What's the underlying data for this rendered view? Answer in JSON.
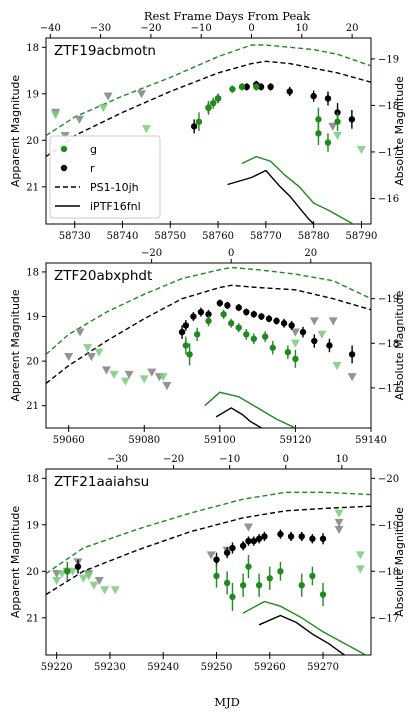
{
  "figure": {
    "top_xlabel": "Rest Frame Days From Peak",
    "bottom_xlabel": "MJD",
    "ylabel_left": "Apparent Magnitude",
    "ylabel_right": "Absolute Magnitude"
  },
  "legend": {
    "g": "g",
    "r": "r",
    "ps1": "PS1-10jh",
    "iptf": "iPTF16fnl"
  },
  "colors": {
    "g": "#1f8a1f",
    "r": "#000000",
    "g_limit": "#7cc97c",
    "r_limit": "#808080"
  },
  "chart_data": [
    {
      "type": "scatter",
      "title": "ZTF19acbmotn",
      "xlabel": "",
      "ylabel": "Apparent Magnitude",
      "x_mjd_range": [
        58724,
        58792
      ],
      "ylim": [
        21.8,
        17.8
      ],
      "x_ticks": [
        58730,
        58740,
        58750,
        58760,
        58770,
        58780,
        58790
      ],
      "y_ticks": [
        18,
        19,
        20,
        21
      ],
      "top_ticks": [
        -40,
        -30,
        -20,
        -10,
        0,
        10,
        20
      ],
      "top_zero_mjd": 58767,
      "top_scale": 0.95,
      "right_ticks": [
        -19,
        -18,
        -17,
        -16
      ],
      "abs_offset": 37.25,
      "g": [
        [
          58756,
          19.6
        ],
        [
          58758,
          19.3
        ],
        [
          58759,
          19.2
        ],
        [
          58760,
          19.1
        ],
        [
          58763,
          18.9
        ],
        [
          58765,
          18.85
        ],
        [
          58768,
          18.85
        ],
        [
          58781,
          19.55
        ],
        [
          58781,
          19.85
        ],
        [
          58783,
          20.05
        ],
        [
          58785,
          19.6
        ]
      ],
      "g_err": [
        0.2,
        0.15,
        0.12,
        0.1,
        0.08,
        0.08,
        0.08,
        0.25,
        0.25,
        0.2,
        0.2
      ],
      "r": [
        [
          58755,
          19.7
        ],
        [
          58758,
          19.3
        ],
        [
          58760,
          19.1
        ],
        [
          58766,
          18.85
        ],
        [
          58768,
          18.8
        ],
        [
          58769,
          18.85
        ],
        [
          58771,
          18.85
        ],
        [
          58775,
          18.95
        ],
        [
          58780,
          19.05
        ],
        [
          58783,
          19.1
        ],
        [
          58785,
          19.4
        ],
        [
          58788,
          19.55
        ]
      ],
      "r_err": [
        0.15,
        0.12,
        0.1,
        0.08,
        0.08,
        0.08,
        0.08,
        0.1,
        0.12,
        0.15,
        0.2,
        0.2
      ],
      "g_lim": [
        [
          58726,
          19.45
        ],
        [
          58736,
          19.3
        ],
        [
          58745,
          19.75
        ],
        [
          58785,
          19.9
        ],
        [
          58790,
          20.2
        ]
      ],
      "r_lim": [
        [
          58726,
          19.4
        ],
        [
          58728,
          19.9
        ],
        [
          58731,
          19.55
        ],
        [
          58737,
          19.05
        ],
        [
          58744,
          19.0
        ],
        [
          58784,
          19.7
        ]
      ],
      "ps1_g": [
        [
          58724,
          19.9
        ],
        [
          58730,
          19.5
        ],
        [
          58740,
          19.05
        ],
        [
          58750,
          18.65
        ],
        [
          58760,
          18.2
        ],
        [
          58767,
          17.95
        ],
        [
          58770,
          17.95
        ],
        [
          58775,
          18.0
        ],
        [
          58780,
          18.05
        ],
        [
          58785,
          18.15
        ],
        [
          58792,
          18.4
        ]
      ],
      "ps1_r": [
        [
          58724,
          20.35
        ],
        [
          58730,
          19.9
        ],
        [
          58740,
          19.4
        ],
        [
          58750,
          18.95
        ],
        [
          58760,
          18.55
        ],
        [
          58767,
          18.35
        ],
        [
          58770,
          18.3
        ],
        [
          58775,
          18.35
        ],
        [
          58780,
          18.45
        ],
        [
          58785,
          18.55
        ],
        [
          58792,
          18.75
        ]
      ],
      "iptf_g": [
        [
          58765,
          20.5
        ],
        [
          58768,
          20.35
        ],
        [
          58771,
          20.45
        ],
        [
          58774,
          20.75
        ],
        [
          58777,
          21.0
        ],
        [
          58780,
          21.35
        ],
        [
          58783,
          21.5
        ],
        [
          58790,
          21.9
        ]
      ],
      "iptf_r": [
        [
          58762,
          20.95
        ],
        [
          58767,
          20.8
        ],
        [
          58770,
          20.65
        ],
        [
          58773,
          21.0
        ],
        [
          58775,
          21.2
        ],
        [
          58777,
          21.45
        ],
        [
          58779,
          21.7
        ],
        [
          58781,
          21.9
        ]
      ]
    },
    {
      "type": "scatter",
      "title": "ZTF20abxphdt",
      "xlabel": "",
      "ylabel": "Apparent Magnitude",
      "x_mjd_range": [
        59054,
        59140
      ],
      "ylim": [
        21.5,
        17.8
      ],
      "x_ticks": [
        59060,
        59080,
        59100,
        59120,
        59140
      ],
      "y_ticks": [
        18,
        19,
        20,
        21
      ],
      "top_ticks": [
        -20,
        0,
        20
      ],
      "top_zero_mjd": 59103,
      "top_scale": 0.95,
      "right_ticks": [
        -19,
        -18,
        -17
      ],
      "abs_offset": 37.6,
      "g": [
        [
          59091,
          19.65
        ],
        [
          59092,
          19.85
        ],
        [
          59094,
          19.4
        ],
        [
          59097,
          19.1
        ],
        [
          59101,
          18.95
        ],
        [
          59103,
          19.15
        ],
        [
          59105,
          19.25
        ],
        [
          59107,
          19.4
        ],
        [
          59109,
          19.5
        ],
        [
          59112,
          19.45
        ],
        [
          59114,
          19.7
        ],
        [
          59118,
          19.8
        ],
        [
          59120,
          19.95
        ]
      ],
      "g_err": [
        0.2,
        0.25,
        0.15,
        0.12,
        0.1,
        0.1,
        0.1,
        0.12,
        0.12,
        0.12,
        0.15,
        0.15,
        0.2
      ],
      "r": [
        [
          59090,
          19.35
        ],
        [
          59091,
          19.2
        ],
        [
          59093,
          19.0
        ],
        [
          59095,
          18.9
        ],
        [
          59097,
          18.95
        ],
        [
          59100,
          18.7
        ],
        [
          59102,
          18.75
        ],
        [
          59105,
          18.8
        ],
        [
          59107,
          18.9
        ],
        [
          59109,
          18.95
        ],
        [
          59111,
          19.0
        ],
        [
          59113,
          19.05
        ],
        [
          59115,
          19.1
        ],
        [
          59117,
          19.15
        ],
        [
          59119,
          19.2
        ],
        [
          59122,
          19.35
        ],
        [
          59125,
          19.55
        ],
        [
          59129,
          19.65
        ],
        [
          59135,
          19.85
        ]
      ],
      "r_err": [
        0.15,
        0.12,
        0.1,
        0.1,
        0.1,
        0.08,
        0.08,
        0.08,
        0.08,
        0.08,
        0.08,
        0.08,
        0.08,
        0.1,
        0.1,
        0.12,
        0.15,
        0.15,
        0.2
      ],
      "g_lim": [
        [
          59065,
          19.7
        ],
        [
          59068,
          19.8
        ],
        [
          59072,
          20.3
        ],
        [
          59075,
          20.45
        ],
        [
          59080,
          20.4
        ],
        [
          59085,
          20.35
        ],
        [
          59120,
          19.6
        ],
        [
          59127,
          19.4
        ],
        [
          59131,
          20.1
        ]
      ],
      "r_lim": [
        [
          59060,
          19.9
        ],
        [
          59063,
          19.35
        ],
        [
          59066,
          19.9
        ],
        [
          59070,
          20.2
        ],
        [
          59076,
          20.3
        ],
        [
          59082,
          20.25
        ],
        [
          59084,
          20.35
        ],
        [
          59086,
          20.55
        ],
        [
          59120,
          19.35
        ],
        [
          59125,
          19.1
        ],
        [
          59130,
          19.1
        ],
        [
          59135,
          20.35
        ]
      ],
      "ps1_g": [
        [
          59054,
          19.85
        ],
        [
          59060,
          19.4
        ],
        [
          59070,
          18.9
        ],
        [
          59080,
          18.5
        ],
        [
          59090,
          18.15
        ],
        [
          59100,
          17.95
        ],
        [
          59103,
          17.9
        ],
        [
          59110,
          17.95
        ],
        [
          59120,
          18.05
        ],
        [
          59130,
          18.2
        ],
        [
          59140,
          18.6
        ]
      ],
      "ps1_r": [
        [
          59054,
          20.5
        ],
        [
          59060,
          20.1
        ],
        [
          59070,
          19.55
        ],
        [
          59080,
          19.05
        ],
        [
          59090,
          18.6
        ],
        [
          59100,
          18.35
        ],
        [
          59103,
          18.3
        ],
        [
          59110,
          18.35
        ],
        [
          59120,
          18.4
        ],
        [
          59130,
          18.6
        ],
        [
          59140,
          18.85
        ]
      ],
      "iptf_g": [
        [
          59096,
          21.0
        ],
        [
          59100,
          20.7
        ],
        [
          59105,
          20.8
        ],
        [
          59110,
          21.05
        ],
        [
          59115,
          21.3
        ],
        [
          59120,
          21.5
        ]
      ],
      "iptf_r": [
        [
          59099,
          21.25
        ],
        [
          59103,
          21.05
        ],
        [
          59106,
          21.2
        ],
        [
          59108,
          21.35
        ],
        [
          59111,
          21.5
        ]
      ]
    },
    {
      "type": "scatter",
      "title": "ZTF21aaiahsu",
      "xlabel": "MJD",
      "ylabel": "Apparent Magnitude",
      "x_mjd_range": [
        59218,
        59279
      ],
      "ylim": [
        21.8,
        17.8
      ],
      "x_ticks": [
        59220,
        59230,
        59240,
        59250,
        59260,
        59270
      ],
      "y_ticks": [
        18,
        19,
        20,
        21
      ],
      "top_ticks": [
        -30,
        -20,
        -10,
        0,
        10
      ],
      "top_zero_mjd": 59263,
      "top_scale": 0.95,
      "right_ticks": [
        -20,
        -19,
        -18,
        -17
      ],
      "abs_offset": 38.0,
      "g": [
        [
          59222,
          20.0
        ],
        [
          59250,
          20.1
        ],
        [
          59252,
          20.25
        ],
        [
          59253,
          20.55
        ],
        [
          59255,
          20.3
        ],
        [
          59256,
          19.9
        ],
        [
          59258,
          20.3
        ],
        [
          59260,
          20.15
        ],
        [
          59262,
          20.0
        ],
        [
          59266,
          20.3
        ],
        [
          59268,
          20.1
        ],
        [
          59270,
          20.5
        ]
      ],
      "g_err": [
        0.2,
        0.25,
        0.25,
        0.3,
        0.25,
        0.25,
        0.25,
        0.25,
        0.2,
        0.25,
        0.2,
        0.25
      ],
      "r": [
        [
          59224,
          19.9
        ],
        [
          59250,
          19.75
        ],
        [
          59252,
          19.6
        ],
        [
          59253,
          19.5
        ],
        [
          59255,
          19.45
        ],
        [
          59256,
          19.35
        ],
        [
          59257,
          19.35
        ],
        [
          59258,
          19.3
        ],
        [
          59259,
          19.25
        ],
        [
          59262,
          19.2
        ],
        [
          59264,
          19.25
        ],
        [
          59266,
          19.25
        ],
        [
          59268,
          19.3
        ],
        [
          59270,
          19.3
        ]
      ],
      "r_err": [
        0.15,
        0.15,
        0.12,
        0.12,
        0.1,
        0.1,
        0.1,
        0.1,
        0.1,
        0.1,
        0.1,
        0.1,
        0.1,
        0.12
      ],
      "g_lim": [
        [
          59220,
          20.2
        ],
        [
          59221,
          20.05
        ],
        [
          59223,
          20.0
        ],
        [
          59225,
          20.15
        ],
        [
          59226,
          20.1
        ],
        [
          59227,
          20.3
        ],
        [
          59229,
          20.4
        ],
        [
          59231,
          20.4
        ],
        [
          59273,
          18.75
        ],
        [
          59277,
          19.65
        ],
        [
          59277,
          19.95
        ]
      ],
      "r_lim": [
        [
          59220,
          20.05
        ],
        [
          59222,
          20.0
        ],
        [
          59224,
          19.8
        ],
        [
          59226,
          20.05
        ],
        [
          59228,
          20.2
        ],
        [
          59249,
          19.65
        ],
        [
          59252,
          19.55
        ],
        [
          59256,
          19.05
        ],
        [
          59273,
          18.95
        ],
        [
          59273,
          19.1
        ]
      ],
      "ps1_g": [
        [
          59218,
          20.05
        ],
        [
          59225,
          19.5
        ],
        [
          59235,
          19.1
        ],
        [
          59245,
          18.75
        ],
        [
          59255,
          18.45
        ],
        [
          59263,
          18.3
        ],
        [
          59270,
          18.3
        ],
        [
          59279,
          18.35
        ]
      ],
      "ps1_r": [
        [
          59218,
          20.5
        ],
        [
          59225,
          20.0
        ],
        [
          59235,
          19.55
        ],
        [
          59245,
          19.15
        ],
        [
          59255,
          18.85
        ],
        [
          59263,
          18.7
        ],
        [
          59270,
          18.65
        ],
        [
          59279,
          18.6
        ]
      ],
      "iptf_g": [
        [
          59255,
          20.9
        ],
        [
          59259,
          20.65
        ],
        [
          59262,
          20.75
        ],
        [
          59266,
          21.0
        ],
        [
          59270,
          21.3
        ],
        [
          59274,
          21.55
        ],
        [
          59278,
          21.8
        ]
      ],
      "iptf_r": [
        [
          59258,
          21.15
        ],
        [
          59262,
          20.95
        ],
        [
          59265,
          21.1
        ],
        [
          59268,
          21.35
        ],
        [
          59271,
          21.55
        ],
        [
          59274,
          21.8
        ]
      ]
    }
  ]
}
